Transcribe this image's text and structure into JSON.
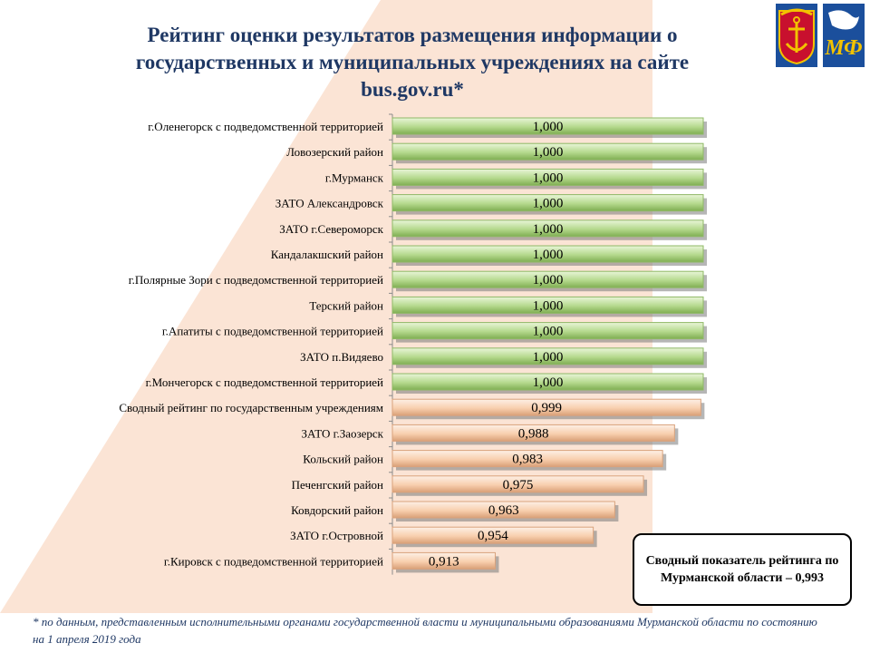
{
  "title": "Рейтинг оценки результатов  размещения  информации о государственных и муниципальных учреждениях на сайте bus.gov.ru*",
  "footnote": "* по данным, представленным исполнительными органами государственной власти и муниципальными образованиями Мурманской области по состоянию на 1 апреля 2019 года",
  "summary_box": "Сводный показатель рейтинга по Мурманской области – 0,993",
  "logos": {
    "region_emblem": "murmansk-region-coat-of-arms",
    "ministry_logo": "ministry-of-finance-logo",
    "ministry_logo_letters": "МФ"
  },
  "colors": {
    "title": "#1f3864",
    "bar_green": "#b5d98d",
    "bar_peach": "#f8cfae",
    "background_wedge": "#fbe4d5"
  },
  "chart_data": {
    "type": "bar",
    "orientation": "horizontal",
    "title": "Рейтинг оценки результатов  размещения  информации о государственных и муниципальных учреждениях на сайте bus.gov.ru*",
    "xlabel": "",
    "ylabel": "",
    "xlim": [
      0.87,
      1.0
    ],
    "grid": false,
    "legend": "none",
    "categories": [
      "г.Оленегорск с подведомственной территорией",
      "Ловозерский район",
      "г.Мурманск",
      "ЗАТО Александровск",
      "ЗАТО г.Североморск",
      "Кандалакшский район",
      "г.Полярные Зори с подведомственной территорией",
      "Терский район",
      "г.Апатиты с подведомственной территорией",
      "ЗАТО п.Видяево",
      "г.Мончегорск с подведомственной территорией",
      "Сводный рейтинг по государственным учреждениям",
      "ЗАТО г.Заозерск",
      "Кольский район",
      "Печенгский район",
      "Ковдорский район",
      "ЗАТО г.Островной",
      "г.Кировск с подведомственной территорией"
    ],
    "values": [
      1.0,
      1.0,
      1.0,
      1.0,
      1.0,
      1.0,
      1.0,
      1.0,
      1.0,
      1.0,
      1.0,
      0.999,
      0.988,
      0.983,
      0.975,
      0.963,
      0.954,
      0.913
    ],
    "value_labels": [
      "1,000",
      "1,000",
      "1,000",
      "1,000",
      "1,000",
      "1,000",
      "1,000",
      "1,000",
      "1,000",
      "1,000",
      "1,000",
      "0,999",
      "0,988",
      "0,983",
      "0,975",
      "0,963",
      "0,954",
      "0,913"
    ],
    "bar_colors": [
      "green",
      "green",
      "green",
      "green",
      "green",
      "green",
      "green",
      "green",
      "green",
      "green",
      "green",
      "peach",
      "peach",
      "peach",
      "peach",
      "peach",
      "peach",
      "peach"
    ]
  }
}
